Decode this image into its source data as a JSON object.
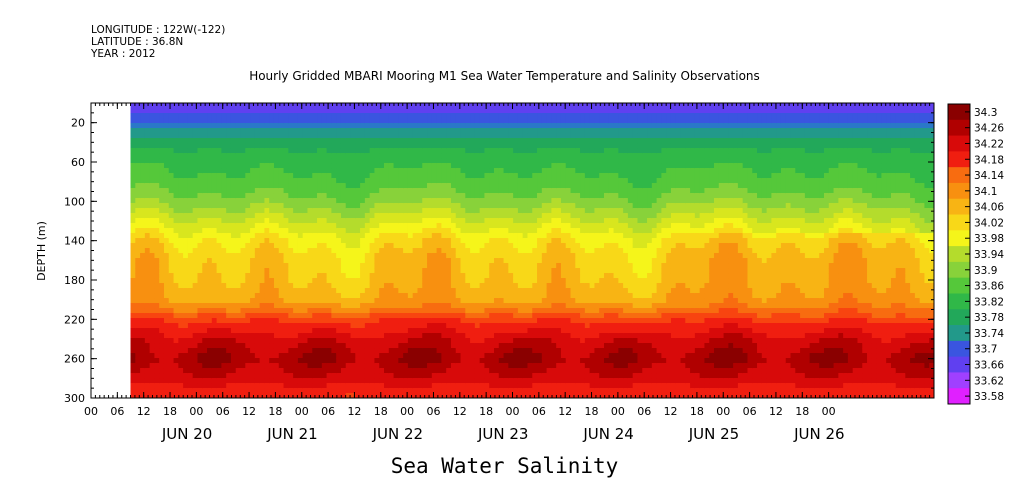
{
  "header": {
    "longitude": "LONGITUDE : 122W(-122)",
    "latitude": "LATITUDE : 36.8N",
    "year": "YEAR : 2012"
  },
  "title": "Hourly Gridded MBARI Mooring M1 Sea Water Temperature and Salinity Observations",
  "bottom_title": "Sea Water Salinity",
  "colors": {
    "nodata": "#ffffff",
    "scale": [
      "#e020ff",
      "#a040ff",
      "#6040f0",
      "#3a55e0",
      "#2a78c8",
      "#22998a",
      "#22a85a",
      "#30b848",
      "#55c83a",
      "#88d23a",
      "#b4dc2c",
      "#d8e61e",
      "#f5f51a",
      "#f8d818",
      "#f8b414",
      "#f89010",
      "#f86c10",
      "#f84410",
      "#f01e10",
      "#d80a0a",
      "#b00000",
      "#8a0000"
    ]
  },
  "chart_data": {
    "type": "heatmap",
    "variable": "Sea Water Salinity",
    "ylabel": "DEPTH (m)",
    "xlabel": "",
    "y_axis": {
      "range": [
        300,
        0
      ],
      "reversed": true,
      "ticks": [
        20,
        60,
        100,
        140,
        180,
        220,
        260,
        300
      ]
    },
    "x_axis": {
      "range": [
        "2012-06-19 00:00",
        "2012-06-26 24:00"
      ],
      "hour_ticks": [
        "00",
        "06",
        "12",
        "18",
        "00",
        "06",
        "12",
        "18",
        "00",
        "06",
        "12",
        "18",
        "00",
        "06",
        "12",
        "18",
        "00",
        "06",
        "12",
        "18",
        "00",
        "06",
        "12",
        "18",
        "00",
        "06",
        "12",
        "18",
        "00"
      ],
      "day_labels": [
        "JUN 20",
        "JUN 21",
        "JUN 22",
        "JUN 23",
        "JUN 24",
        "JUN 25",
        "JUN 26"
      ]
    },
    "data_start": "2012-06-19 09:00",
    "colorbar": {
      "levels": [
        34.3,
        34.26,
        34.22,
        34.18,
        34.14,
        34.1,
        34.06,
        34.02,
        33.98,
        33.94,
        33.9,
        33.86,
        33.82,
        33.78,
        33.74,
        33.7,
        33.66,
        33.62,
        33.58
      ]
    },
    "depth_profile": {
      "depths": [
        5,
        20,
        40,
        60,
        80,
        100,
        120,
        140,
        160,
        180,
        200,
        210,
        220,
        240,
        260,
        280,
        300
      ],
      "salinity": [
        33.66,
        33.72,
        33.8,
        33.84,
        33.86,
        33.9,
        33.96,
        34.02,
        34.05,
        34.06,
        34.08,
        34.12,
        34.18,
        34.24,
        34.28,
        34.24,
        34.18
      ]
    }
  }
}
